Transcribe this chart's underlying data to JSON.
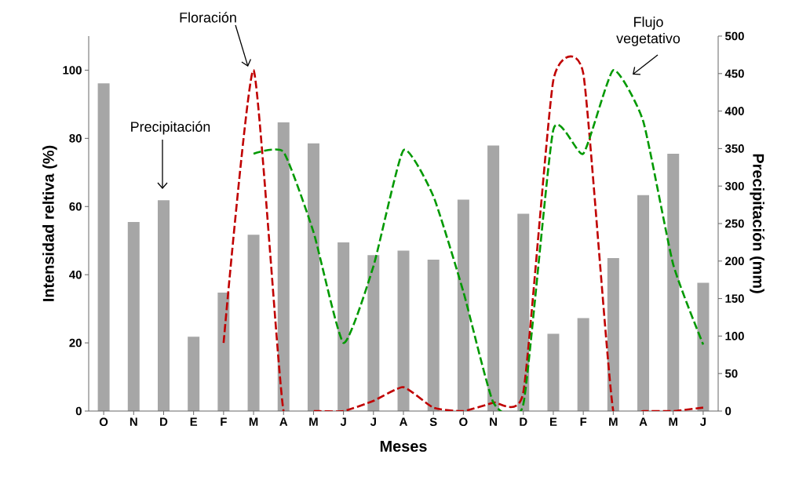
{
  "chart_data": {
    "type": "bar",
    "xlabel": "Meses",
    "ylabel": "Intensidad reltiva (%)",
    "y2label": "Precipitación (mm)",
    "categories": [
      "O",
      "N",
      "D",
      "E",
      "F",
      "M",
      "A",
      "M",
      "J",
      "J",
      "A",
      "S",
      "O",
      "N",
      "D",
      "E",
      "F",
      "M",
      "A",
      "M",
      "J"
    ],
    "series": [
      {
        "name": "Precipitación",
        "axis": "y2",
        "color": "#a6a6a6",
        "values": [
          437,
          252,
          281,
          99,
          158,
          235,
          385,
          357,
          225,
          208,
          214,
          202,
          282,
          354,
          263,
          103,
          124,
          204,
          288,
          343,
          171
        ]
      },
      {
        "name": "Floración",
        "type": "line",
        "color": "#c00000",
        "line_style": "dashed",
        "values": [
          null,
          null,
          null,
          null,
          20,
          100,
          0,
          0,
          0,
          3,
          7,
          1,
          0,
          2.5,
          5.5,
          97,
          99,
          0,
          0,
          0,
          1
        ]
      },
      {
        "name": "Flujo vegetativo",
        "type": "line",
        "color": "#009900",
        "line_style": "dashed",
        "values": [
          null,
          null,
          null,
          null,
          null,
          75.5,
          76,
          52.5,
          20,
          42.5,
          76.5,
          63,
          35,
          2.5,
          2,
          82.5,
          75.5,
          100,
          85,
          43,
          19.5
        ]
      }
    ],
    "ylim": [
      0,
      110
    ],
    "yticks": [
      0,
      20,
      40,
      60,
      80,
      100
    ],
    "y2lim": [
      0,
      500
    ],
    "y2ticks": [
      0,
      50,
      100,
      150,
      200,
      250,
      300,
      350,
      400,
      450,
      500
    ],
    "grid": false,
    "legend": false,
    "marker": "none"
  }
}
